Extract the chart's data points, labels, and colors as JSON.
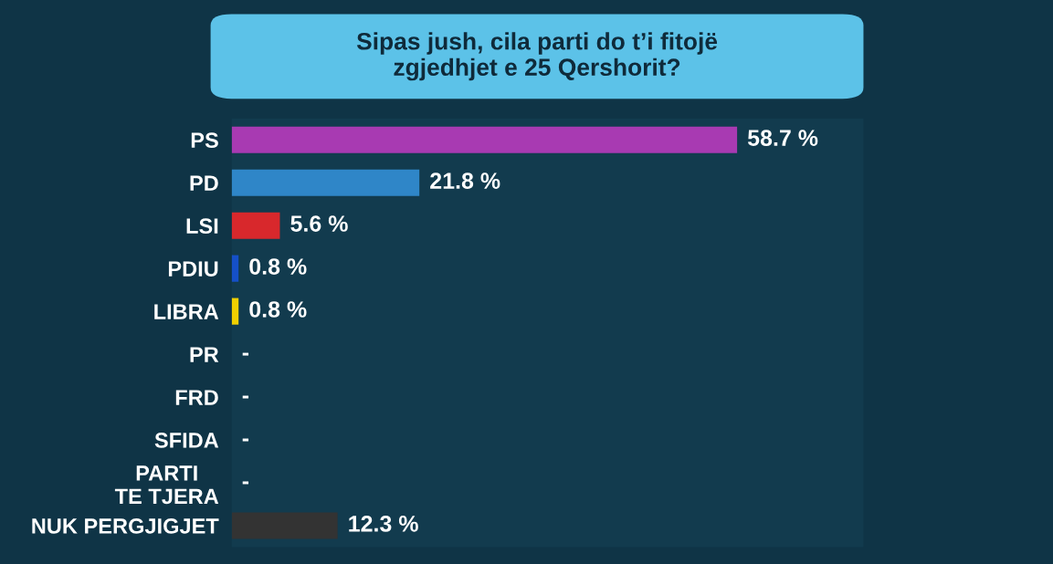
{
  "chart_data": {
    "type": "bar",
    "orientation": "horizontal",
    "title": "Sipas jush, cila parti do t’i fitojë\nzgjedhjet e 25 Qershorit?",
    "categories": [
      "PS",
      "PD",
      "LSI",
      "PDIU",
      "LIBRA",
      "PR",
      "FRD",
      "SFIDA",
      "PARTI\nTE TJERA",
      "NUK PERGJIGJET"
    ],
    "values": [
      58.7,
      21.8,
      5.6,
      0.8,
      0.8,
      null,
      null,
      null,
      null,
      12.3
    ],
    "colors": [
      "#a83ab2",
      "#2f86c8",
      "#d8282c",
      "#1550c8",
      "#f0d000",
      null,
      null,
      null,
      null,
      "#333333"
    ],
    "value_labels": [
      "58.7 %",
      "21.8 %",
      "5.6 %",
      "0.8 %",
      "0.8 %",
      "-",
      "-",
      "-",
      "-",
      "12.3 %"
    ],
    "grid": false,
    "legend": false
  }
}
